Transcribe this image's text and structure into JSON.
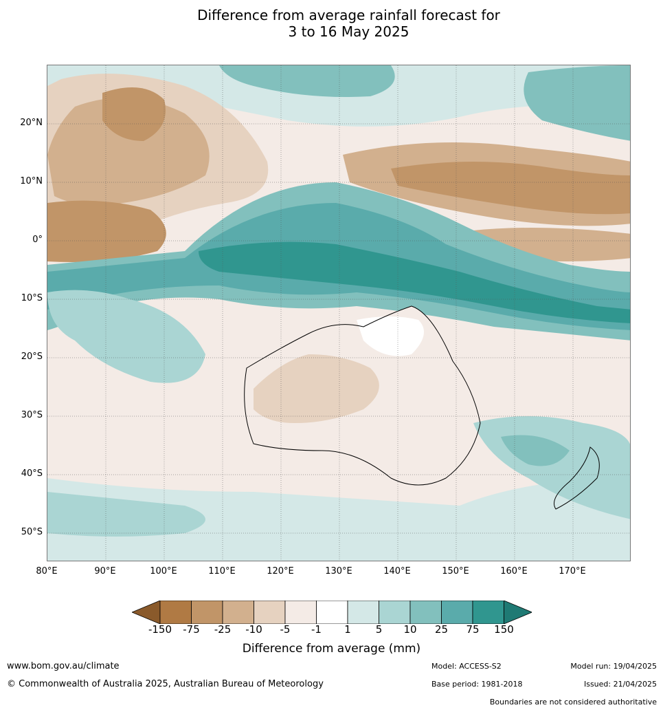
{
  "title": {
    "line1": "Difference from average rainfall forecast for",
    "line2": "3 to 16 May 2025"
  },
  "map": {
    "lat_labels": [
      "20°N",
      "10°N",
      "0°",
      "10°S",
      "20°S",
      "30°S",
      "40°S",
      "50°S"
    ],
    "lon_labels": [
      "80°E",
      "90°E",
      "100°E",
      "110°E",
      "120°E",
      "130°E",
      "140°E",
      "150°E",
      "160°E",
      "170°E"
    ],
    "region_extent": {
      "lon": [
        80,
        180
      ],
      "lat": [
        -55,
        30
      ]
    }
  },
  "colorbar": {
    "ticks": [
      "-150",
      "-75",
      "-25",
      "-10",
      "-5",
      "-1",
      "1",
      "5",
      "10",
      "25",
      "75",
      "150"
    ],
    "colors": [
      "#8a5a2b",
      "#b07a44",
      "#c19568",
      "#d2b08e",
      "#e6d2c0",
      "#f4ebe6",
      "#ffffff",
      "#d4e8e7",
      "#aad5d3",
      "#82c0bd",
      "#5aabab",
      "#30968f",
      "#1f7a74"
    ],
    "label": "Difference from average (mm)"
  },
  "footer": {
    "website": "www.bom.gov.au/climate",
    "copyright": "© Commonwealth of Australia 2025, Australian Bureau of Meteorology",
    "model": "Model: ACCESS-S2",
    "base_period": "Base period: 1981-2018",
    "model_run": "Model run: 19/04/2025",
    "issued": "Issued: 21/04/2025",
    "disclaimer": "Boundaries are not considered authoritative"
  }
}
